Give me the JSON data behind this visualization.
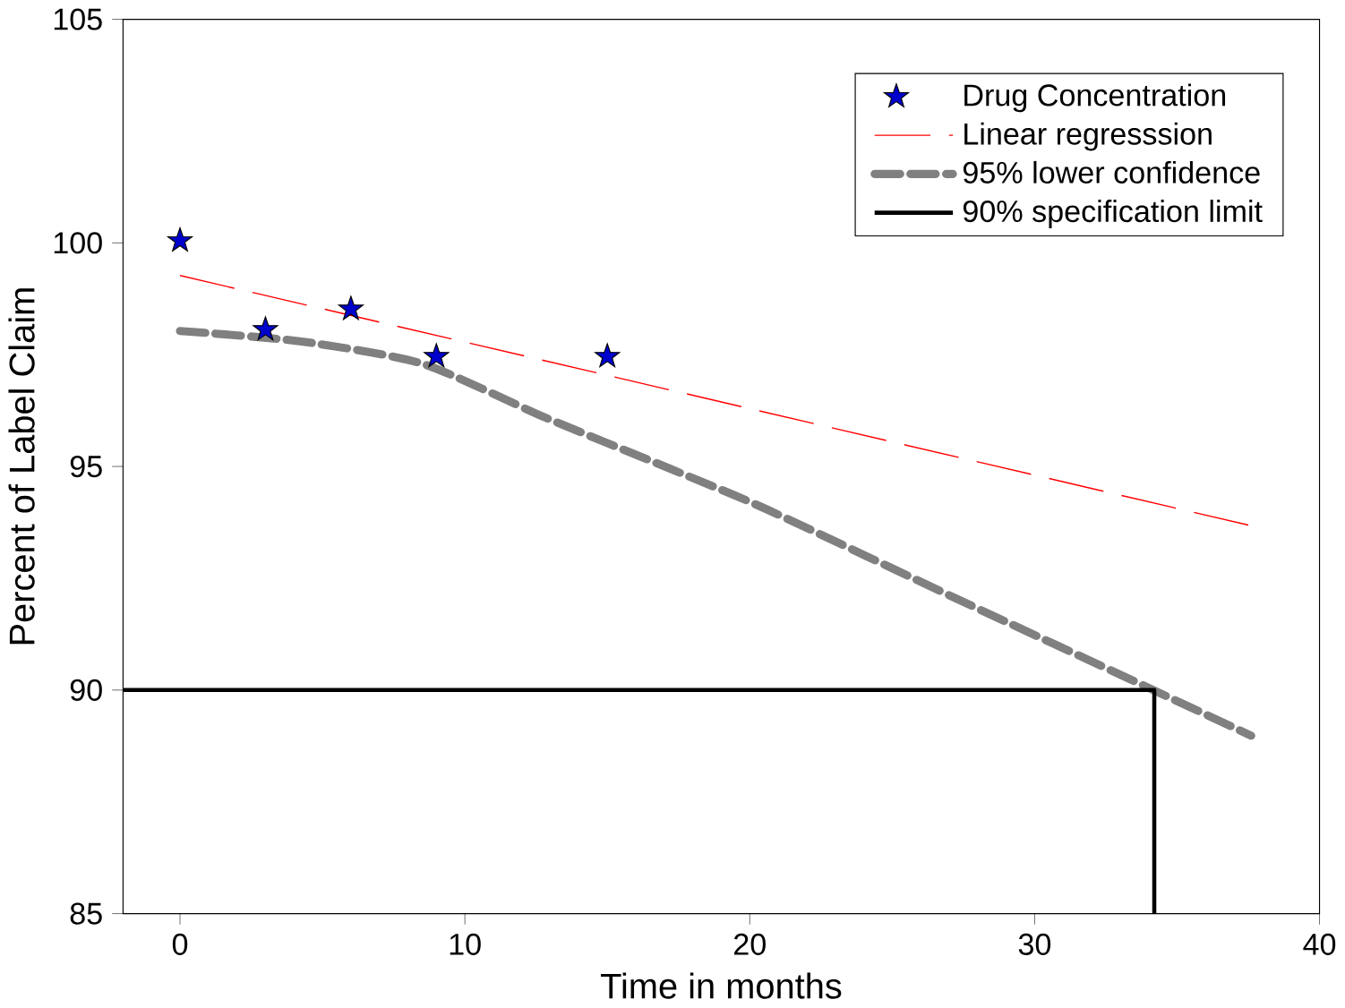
{
  "chart_data": {
    "type": "line",
    "xlabel": "Time in months",
    "ylabel": "Percent of Label Claim",
    "xlim": [
      -2,
      40
    ],
    "ylim": [
      85,
      105
    ],
    "xticks": [
      0,
      10,
      20,
      30,
      40
    ],
    "yticks": [
      85,
      90,
      95,
      100,
      105
    ],
    "grid": false,
    "legend": "top right",
    "series": [
      {
        "name": "Drug Concentration",
        "type": "scatter",
        "marker": "star",
        "color": "#0000cc",
        "x": [
          0,
          3,
          6,
          9,
          15
        ],
        "values": [
          100.05,
          98.06,
          98.52,
          97.46,
          97.46
        ]
      },
      {
        "name": "Linear regresssion",
        "line_style": "dashed",
        "color": "#ff0000",
        "x": [
          0,
          37.5
        ],
        "values": [
          99.27,
          93.69
        ]
      },
      {
        "name": "95% lower confidence",
        "line_style": "dashed",
        "color": "#808080",
        "x": [
          0,
          4.2,
          8.5,
          12.8,
          17.2,
          20.6,
          27.4,
          34.1,
          37.6
        ],
        "values": [
          98.03,
          97.8,
          97.3,
          96.1,
          94.95,
          94.04,
          92.0,
          90.02,
          88.98
        ]
      },
      {
        "name": "90% specification limit",
        "line_style": "solid",
        "color": "#000000",
        "x": [
          -2,
          34.2,
          34.2
        ],
        "values": [
          90,
          90,
          85
        ]
      }
    ]
  }
}
